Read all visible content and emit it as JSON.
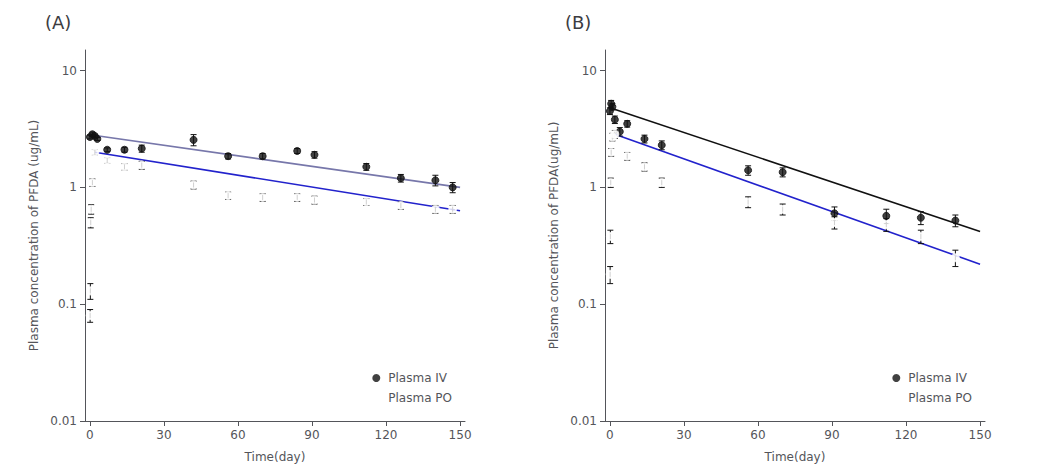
{
  "chart_data": [
    {
      "type": "scatter",
      "title": "(A)",
      "xlabel": "Time(day)",
      "ylabel": "Plasma concentration of PFDA (ug/mL)",
      "xlim": [
        -2,
        152
      ],
      "ylim": [
        0.01,
        15
      ],
      "xticks": [
        0,
        30,
        60,
        90,
        120,
        150
      ],
      "yticks": [
        0.01,
        0.1,
        1,
        10
      ],
      "log": "y",
      "grid": false,
      "legend": "lower right",
      "series": [
        {
          "name": "Plasma IV",
          "color": "#111111",
          "marker": "circle",
          "x": [
            0,
            1,
            2,
            3,
            7,
            14,
            21,
            42,
            56,
            70,
            84,
            91,
            112,
            126,
            140,
            147
          ],
          "values": [
            2.7,
            2.85,
            2.75,
            2.6,
            2.1,
            2.1,
            2.15,
            2.55,
            1.85,
            1.85,
            2.05,
            1.9,
            1.5,
            1.2,
            1.15,
            1.0
          ],
          "yerr": [
            0.1,
            0.12,
            0.1,
            0.08,
            0.08,
            0.1,
            0.15,
            0.28,
            0.1,
            0.1,
            0.1,
            0.12,
            0.1,
            0.09,
            0.12,
            0.1
          ]
        },
        {
          "name": "Plasma PO",
          "color": "#111111",
          "marker": "open",
          "x": [
            0.08,
            0.17,
            0.33,
            0.5,
            1,
            2,
            7,
            14,
            21,
            42,
            56,
            70,
            84,
            91,
            112,
            126,
            140,
            147
          ],
          "values": [
            0.08,
            0.13,
            0.5,
            0.65,
            1.1,
            2.0,
            1.7,
            1.5,
            1.55,
            1.05,
            0.85,
            0.82,
            0.82,
            0.78,
            0.75,
            0.7,
            0.65,
            0.65
          ],
          "yerr": [
            0.01,
            0.02,
            0.05,
            0.06,
            0.08,
            0.1,
            0.09,
            0.09,
            0.12,
            0.08,
            0.06,
            0.06,
            0.06,
            0.06,
            0.05,
            0.05,
            0.05,
            0.05
          ]
        },
        {
          "type": "line",
          "color": "#7777aa",
          "line_style": "solid",
          "x": [
            0,
            150
          ],
          "values": [
            2.82,
            1.0
          ]
        },
        {
          "type": "line",
          "color": "#2222cc",
          "line_style": "solid",
          "x": [
            2,
            150
          ],
          "values": [
            2.0,
            0.63
          ]
        }
      ]
    },
    {
      "type": "scatter",
      "title": "(B)",
      "xlabel": "Time(day)",
      "ylabel": "Plasma concentration of PFDA(ug/mL)",
      "xlim": [
        -2,
        152
      ],
      "ylim": [
        0.01,
        15
      ],
      "xticks": [
        0,
        30,
        60,
        90,
        120,
        150
      ],
      "yticks": [
        0.01,
        0.1,
        1,
        10
      ],
      "log": "y",
      "grid": false,
      "legend": "lower right",
      "series": [
        {
          "name": "Plasma IV",
          "color": "#111111",
          "marker": "circle",
          "x": [
            0,
            0.5,
            1,
            2,
            4,
            7,
            14,
            21,
            56,
            70,
            91,
            112,
            126,
            140
          ],
          "values": [
            4.5,
            5.2,
            4.9,
            3.8,
            3.0,
            3.5,
            2.6,
            2.3,
            1.4,
            1.35,
            0.6,
            0.57,
            0.55,
            0.52
          ],
          "yerr": [
            0.3,
            0.35,
            0.3,
            0.28,
            0.25,
            0.22,
            0.2,
            0.2,
            0.13,
            0.12,
            0.08,
            0.08,
            0.07,
            0.06
          ]
        },
        {
          "name": "Plasma PO",
          "color": "#111111",
          "marker": "open",
          "x": [
            0.08,
            0.17,
            0.33,
            0.5,
            1,
            2,
            7,
            14,
            21,
            56,
            70,
            91,
            112,
            126,
            140
          ],
          "values": [
            0.18,
            0.38,
            1.1,
            2.0,
            2.7,
            2.85,
            1.85,
            1.5,
            1.1,
            0.75,
            0.65,
            0.5,
            0.48,
            0.38,
            0.25
          ],
          "yerr": [
            0.03,
            0.05,
            0.1,
            0.15,
            0.2,
            0.22,
            0.14,
            0.12,
            0.1,
            0.08,
            0.07,
            0.06,
            0.06,
            0.05,
            0.04
          ]
        },
        {
          "type": "line",
          "color": "#111111",
          "line_style": "solid",
          "x": [
            0,
            150
          ],
          "values": [
            4.8,
            0.42
          ]
        },
        {
          "type": "line",
          "color": "#2222cc",
          "line_style": "solid",
          "x": [
            2,
            150
          ],
          "values": [
            2.85,
            0.22
          ]
        }
      ]
    }
  ]
}
